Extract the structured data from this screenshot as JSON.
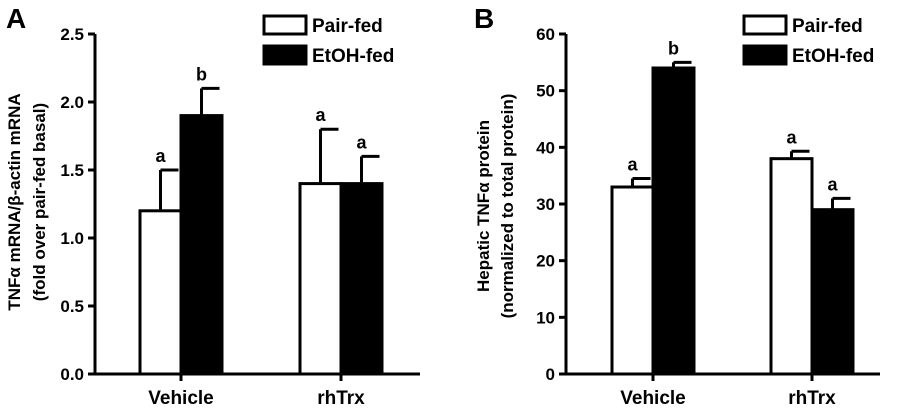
{
  "chart_data": [
    {
      "type": "bar",
      "panel": "A",
      "categories": [
        "Vehicle",
        "rhTrx"
      ],
      "series": [
        {
          "name": "Pair-fed",
          "values": [
            1.2,
            1.4
          ],
          "errors": [
            0.3,
            0.4
          ],
          "letters": [
            "a",
            "a"
          ]
        },
        {
          "name": "EtOH-fed",
          "values": [
            1.9,
            1.4
          ],
          "errors": [
            0.2,
            0.2
          ],
          "letters": [
            "b",
            "a"
          ]
        }
      ],
      "ylabel_line1": "TNFα mRNA/β-actin mRNA",
      "ylabel_line2": "(fold over pair-fed basal)",
      "ylim": [
        0,
        2.5
      ],
      "yticks": [
        "0.0",
        "0.5",
        "1.0",
        "1.5",
        "2.0",
        "2.5"
      ],
      "legend_position": "top-right",
      "grid": false
    },
    {
      "type": "bar",
      "panel": "B",
      "categories": [
        "Vehicle",
        "rhTrx"
      ],
      "series": [
        {
          "name": "Pair-fed",
          "values": [
            33,
            38
          ],
          "errors": [
            1.5,
            1.3
          ],
          "letters": [
            "a",
            "a"
          ]
        },
        {
          "name": "EtOH-fed",
          "values": [
            54,
            29
          ],
          "errors": [
            1.0,
            2.0
          ],
          "letters": [
            "b",
            "a"
          ]
        }
      ],
      "ylabel_line1": "Hepatic TNFα protein",
      "ylabel_line2": "(normalized to total protein)",
      "ylim": [
        0,
        60
      ],
      "yticks": [
        "0",
        "10",
        "20",
        "30",
        "40",
        "50",
        "60"
      ],
      "legend_position": "top-right",
      "grid": false
    }
  ],
  "colors": {
    "pair_fed": "#ffffff",
    "etoh_fed": "#000000",
    "axis": "#000000"
  }
}
